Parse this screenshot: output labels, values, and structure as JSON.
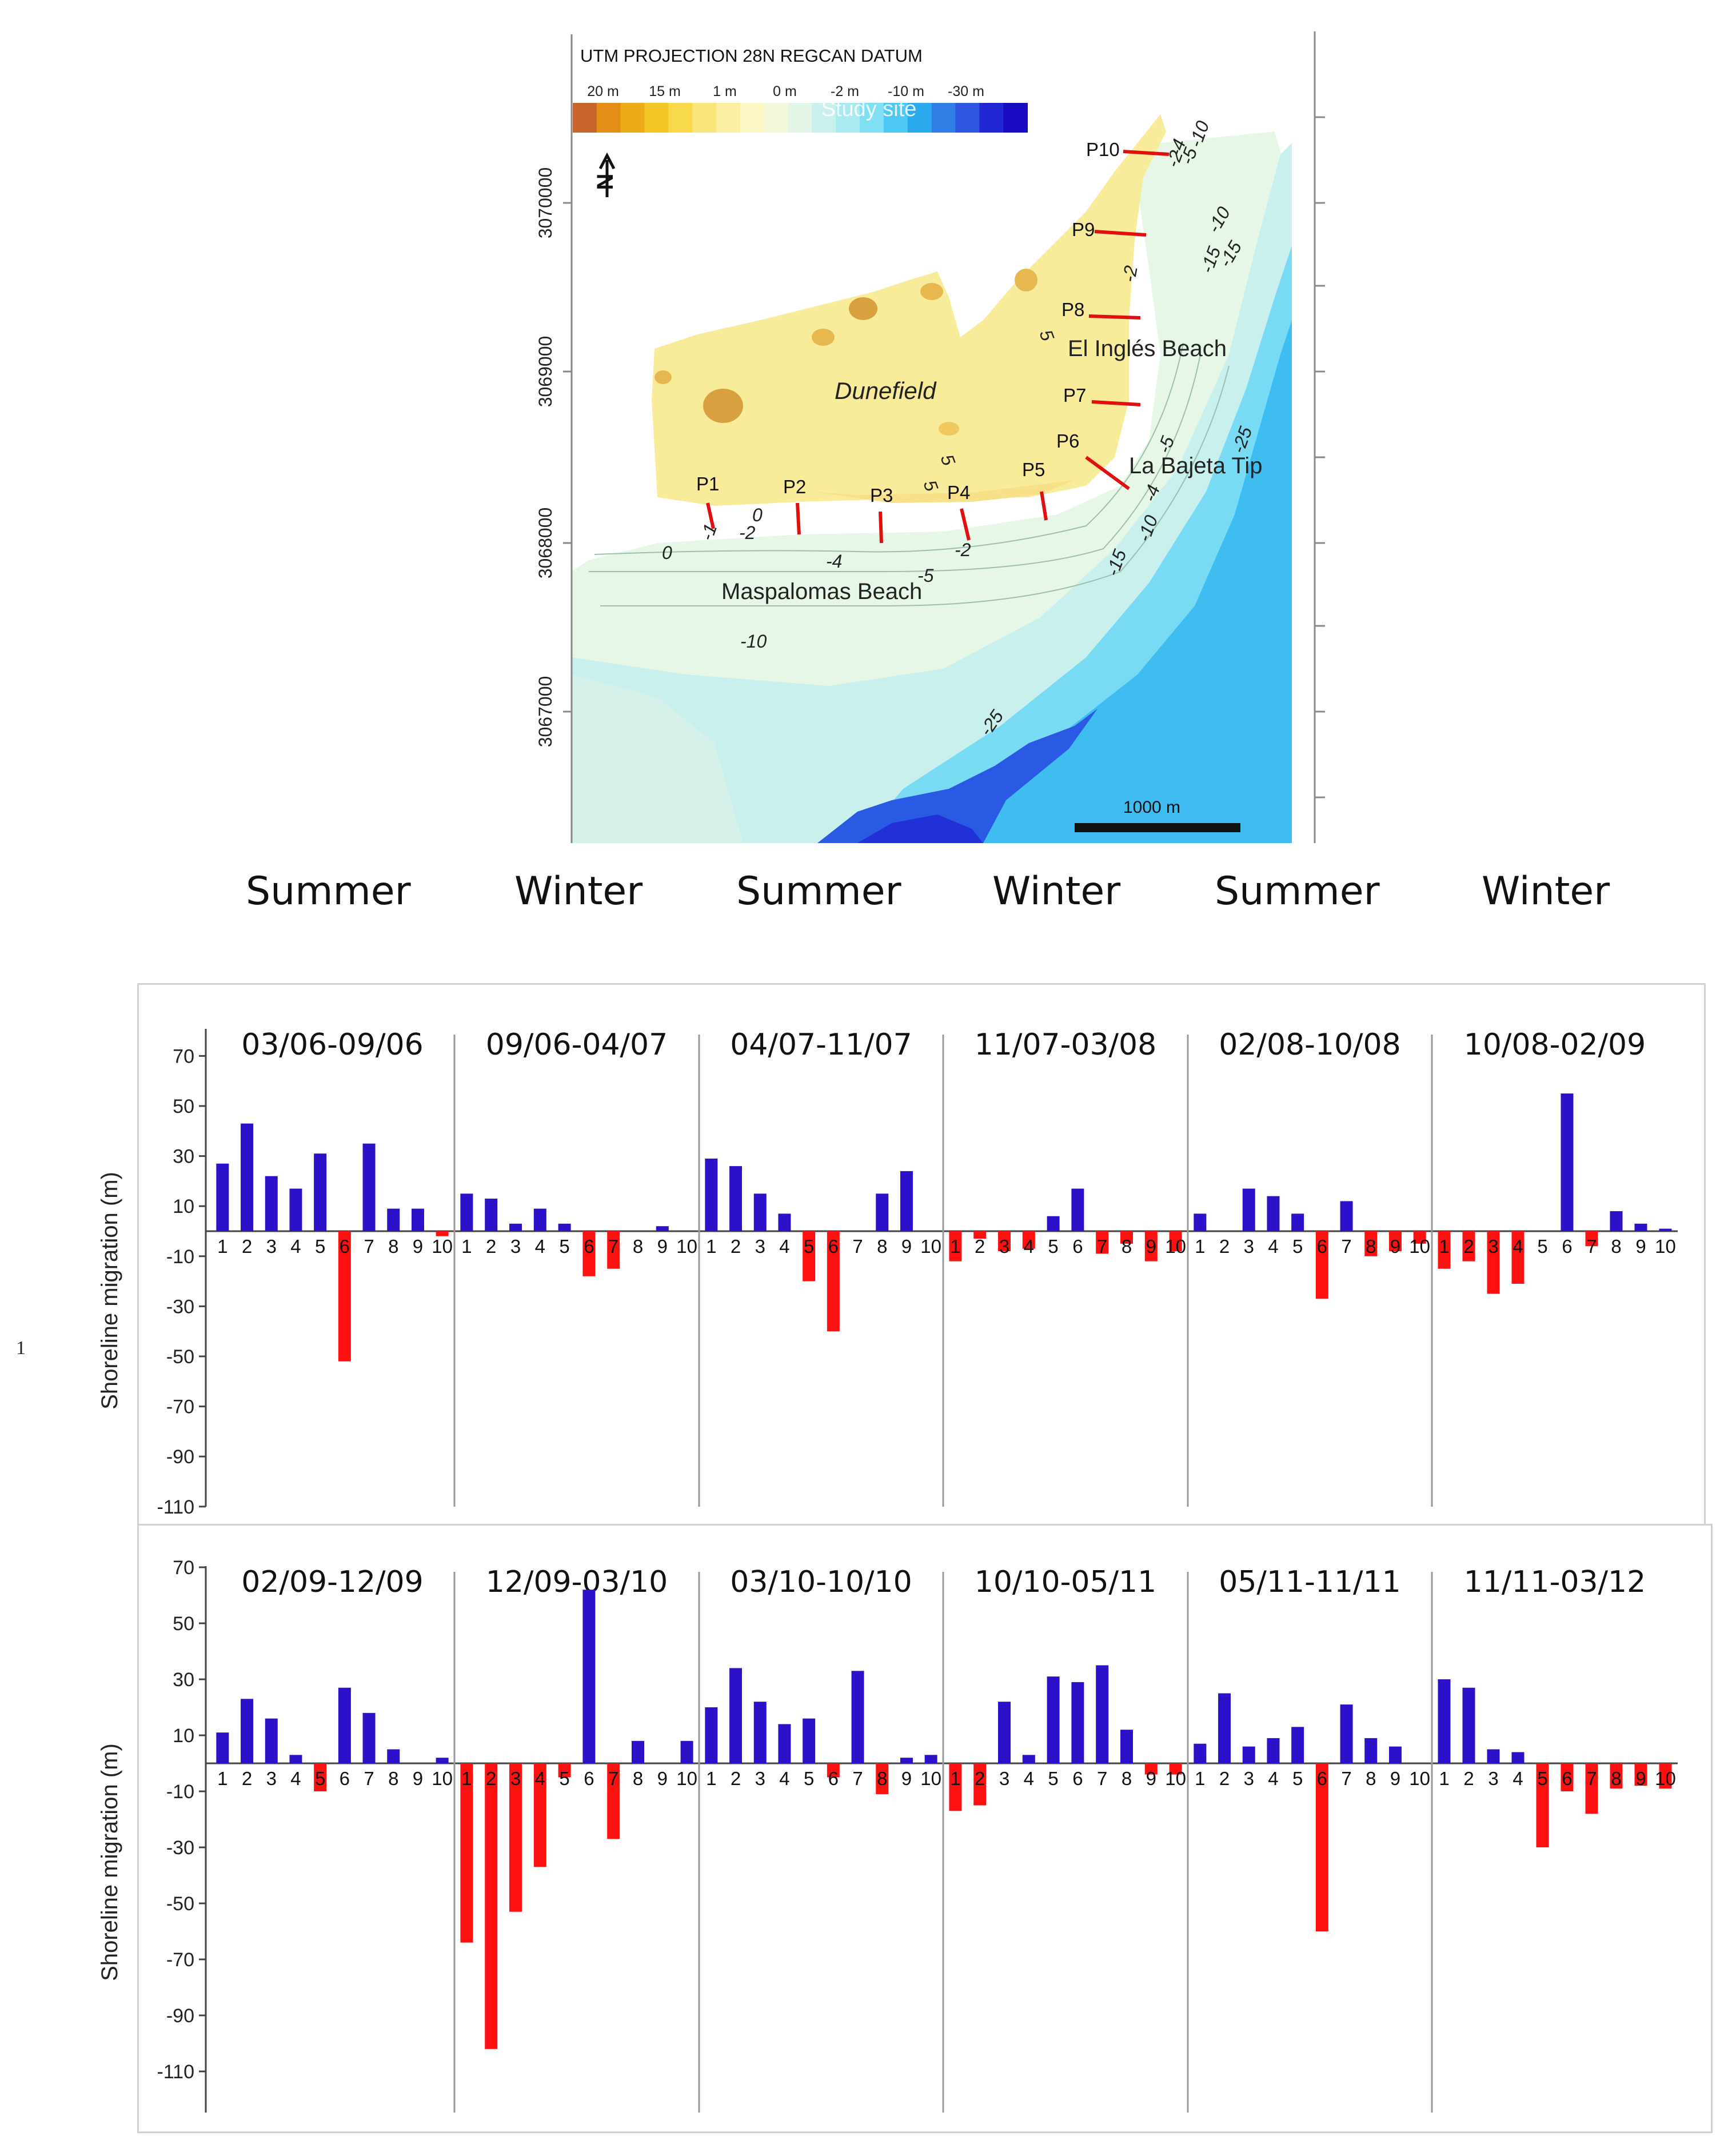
{
  "map": {
    "title": "UTM PROJECTION 28N REGCAN DATUM",
    "legend_labels": [
      "20 m",
      "15 m",
      "1 m",
      "0 m",
      "-2 m",
      "-10 m",
      "-30 m"
    ],
    "legend_overlay": "Study site",
    "legend_colors": [
      "#c8652a",
      "#e58e17",
      "#ecab17",
      "#f4c626",
      "#f7d94a",
      "#f9e57c",
      "#fbefa2",
      "#fcf6c4",
      "#f4f8da",
      "#e2f5e6",
      "#c9f0ec",
      "#a8eaf0",
      "#7fdff3",
      "#4cc8f2",
      "#2aa9ec",
      "#2f7fe6",
      "#2d55e0",
      "#2227d4",
      "#1a0cc4"
    ],
    "north_label": "N",
    "y_ticks": [
      "3070000",
      "3069000",
      "3068000",
      "3067000"
    ],
    "place_labels": {
      "dunefield": "Dunefield",
      "ingles": "El Inglés Beach",
      "bajeta": "La Bajeta Tip",
      "maspalomas": "Maspalomas Beach"
    },
    "profiles": [
      "P1",
      "P2",
      "P3",
      "P4",
      "P5",
      "P6",
      "P7",
      "P8",
      "P9",
      "P10"
    ],
    "contours": [
      "0",
      "-1",
      "-2",
      "0",
      "-4",
      "-5",
      "-2",
      "-10",
      "5",
      "5",
      "5",
      "-2",
      "-4",
      "-5",
      "-2",
      "-10",
      "-15",
      "-10",
      "-15",
      "-5",
      "-4",
      "-10",
      "-15",
      "-25",
      "-25"
    ],
    "scale_label": "1000 m",
    "colors": {
      "dune": "#f8ec9a",
      "shallow": "#e5f7e8",
      "mid": "#c6efee",
      "deep": "#4ec7f1",
      "deepest": "#2a55e2",
      "profile": "#e01010"
    }
  },
  "seasons": [
    "Summer",
    "Winter",
    "Summer",
    "Winter",
    "Summer",
    "Winter"
  ],
  "page_number": "1",
  "colors": {
    "accretion": "#2b12c9",
    "erosion": "#ff1010",
    "divider": "#999999",
    "axis": "#444444"
  },
  "chart_data": [
    {
      "type": "bar",
      "ylabel": "Shoreline migration (m)",
      "ylim": [
        -110,
        70
      ],
      "yticks": [
        70,
        50,
        30,
        10,
        -10,
        -30,
        -50,
        -70,
        -90,
        -110
      ],
      "categories": [
        "1",
        "2",
        "3",
        "4",
        "5",
        "6",
        "7",
        "8",
        "9",
        "10"
      ],
      "panels": [
        {
          "title": "03/06-09/06",
          "values": [
            27,
            43,
            22,
            17,
            31,
            -52,
            35,
            9,
            9,
            -2
          ]
        },
        {
          "title": "09/06-04/07",
          "values": [
            15,
            13,
            3,
            9,
            3,
            -18,
            -15,
            0,
            2,
            0
          ]
        },
        {
          "title": "04/07-11/07",
          "values": [
            29,
            26,
            15,
            7,
            -20,
            -40,
            0,
            15,
            24,
            0
          ]
        },
        {
          "title": "11/07-03/08",
          "values": [
            -12,
            -3,
            -8,
            -7,
            6,
            17,
            -9,
            -5,
            -12,
            -8
          ]
        },
        {
          "title": "02/08-10/08",
          "values": [
            7,
            0,
            17,
            14,
            7,
            -27,
            12,
            -10,
            -8,
            -5
          ]
        },
        {
          "title": "10/08-02/09",
          "values": [
            -15,
            -12,
            -25,
            -21,
            0,
            55,
            -6,
            8,
            3,
            1
          ]
        }
      ]
    },
    {
      "type": "bar",
      "ylabel": "Shoreline migration (m)",
      "ylim": [
        -110,
        70
      ],
      "yticks": [
        70,
        50,
        30,
        10,
        -10,
        -30,
        -50,
        -70,
        -90,
        -110
      ],
      "categories": [
        "1",
        "2",
        "3",
        "4",
        "5",
        "6",
        "7",
        "8",
        "9",
        "10"
      ],
      "panels": [
        {
          "title": "02/09-12/09",
          "values": [
            11,
            23,
            16,
            3,
            -10,
            27,
            18,
            5,
            0,
            2
          ]
        },
        {
          "title": "12/09-03/10",
          "values": [
            -64,
            -102,
            -53,
            -37,
            -5,
            62,
            -27,
            8,
            0,
            8
          ]
        },
        {
          "title": "03/10-10/10",
          "values": [
            20,
            34,
            22,
            14,
            16,
            -5,
            33,
            -11,
            2,
            3
          ]
        },
        {
          "title": "10/10-05/11",
          "values": [
            -17,
            -15,
            22,
            3,
            31,
            29,
            35,
            12,
            -4,
            -4
          ]
        },
        {
          "title": "05/11-11/11",
          "values": [
            7,
            25,
            6,
            9,
            13,
            -60,
            21,
            9,
            6,
            0
          ]
        },
        {
          "title": "11/11-03/12",
          "values": [
            30,
            27,
            5,
            4,
            -30,
            -10,
            -18,
            -9,
            -8,
            -9
          ]
        }
      ]
    }
  ]
}
